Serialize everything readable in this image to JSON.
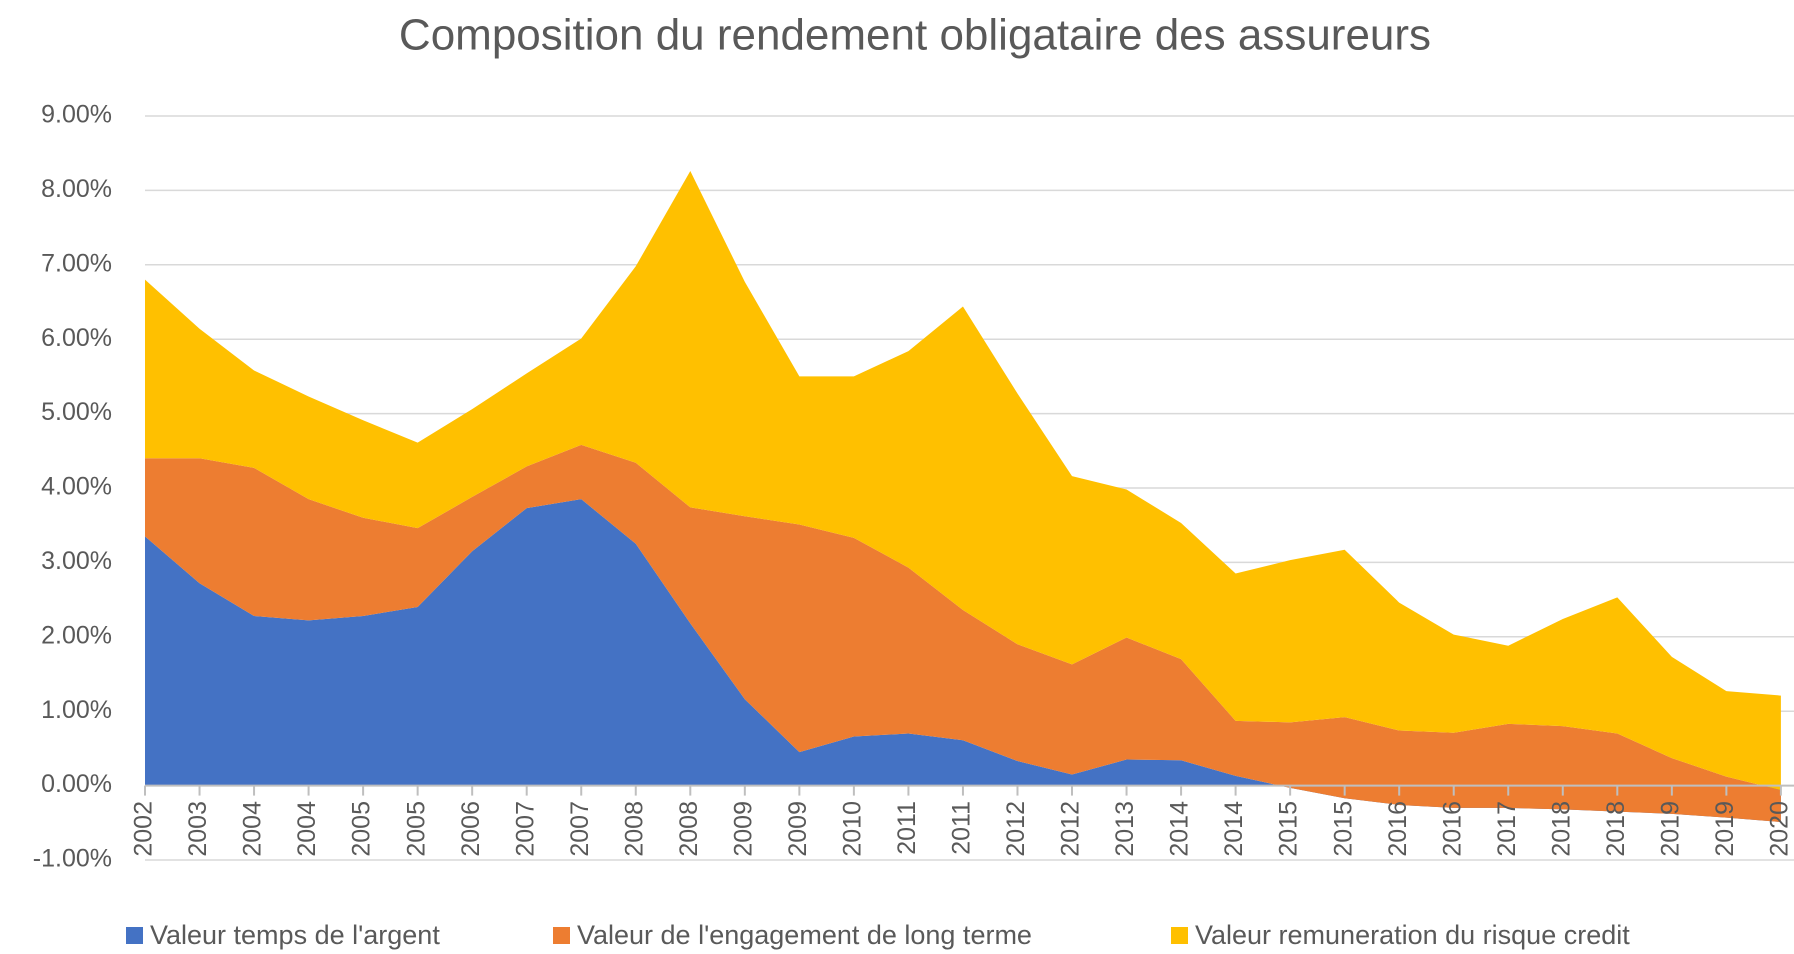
{
  "chart_data": {
    "type": "stacked_area",
    "title": "Composition du rendement obligataire des assureurs",
    "categories": [
      "2002",
      "2003",
      "2004",
      "2004",
      "2005",
      "2005",
      "2006",
      "2007",
      "2007",
      "2008",
      "2008",
      "2009",
      "2009",
      "2010",
      "2011",
      "2011",
      "2012",
      "2012",
      "2013",
      "2014",
      "2014",
      "2015",
      "2015",
      "2016",
      "2016",
      "2017",
      "2018",
      "2018",
      "2019",
      "2019",
      "2020"
    ],
    "series": [
      {
        "name": "Valeur temps de l'argent",
        "color": "#4472c4",
        "values": [
          3.35,
          2.72,
          2.28,
          2.22,
          2.28,
          2.4,
          3.15,
          3.73,
          3.85,
          3.25,
          2.18,
          1.16,
          0.45,
          0.66,
          0.7,
          0.61,
          0.33,
          0.15,
          0.35,
          0.34,
          0.13,
          -0.03,
          -0.17,
          -0.26,
          -0.3,
          -0.3,
          -0.32,
          -0.35,
          -0.38,
          -0.43,
          -0.49
        ]
      },
      {
        "name": "Valeur de l'engagement de long terme",
        "color": "#ed7d31",
        "values": [
          1.05,
          1.68,
          1.99,
          1.63,
          1.32,
          1.06,
          0.73,
          0.56,
          0.73,
          1.09,
          1.56,
          2.46,
          3.06,
          2.67,
          2.23,
          1.75,
          1.57,
          1.48,
          1.64,
          1.36,
          0.74,
          0.88,
          1.09,
          1.0,
          1.01,
          1.13,
          1.12,
          1.05,
          0.75,
          0.55,
          0.43
        ]
      },
      {
        "name": "Valeur remuneration du risque credit",
        "color": "#ffc000",
        "values": [
          2.4,
          1.74,
          1.31,
          1.38,
          1.31,
          1.15,
          1.18,
          1.25,
          1.43,
          2.64,
          4.52,
          3.15,
          1.99,
          2.17,
          2.91,
          4.08,
          3.37,
          2.53,
          1.99,
          1.83,
          1.98,
          2.18,
          2.25,
          1.72,
          1.32,
          1.05,
          1.44,
          1.83,
          1.36,
          1.15,
          1.27
        ]
      }
    ],
    "ylim": [
      -1,
      9
    ],
    "yticks": [
      {
        "value": -1,
        "label": "-1.00%"
      },
      {
        "value": 0,
        "label": "0.00%"
      },
      {
        "value": 1,
        "label": "1.00%"
      },
      {
        "value": 2,
        "label": "2.00%"
      },
      {
        "value": 3,
        "label": "3.00%"
      },
      {
        "value": 4,
        "label": "4.00%"
      },
      {
        "value": 5,
        "label": "5.00%"
      },
      {
        "value": 6,
        "label": "6.00%"
      },
      {
        "value": 7,
        "label": "7.00%"
      },
      {
        "value": 8,
        "label": "8.00%"
      },
      {
        "value": 9,
        "label": "9.00%"
      }
    ],
    "grid": true,
    "legend": "bottom"
  }
}
